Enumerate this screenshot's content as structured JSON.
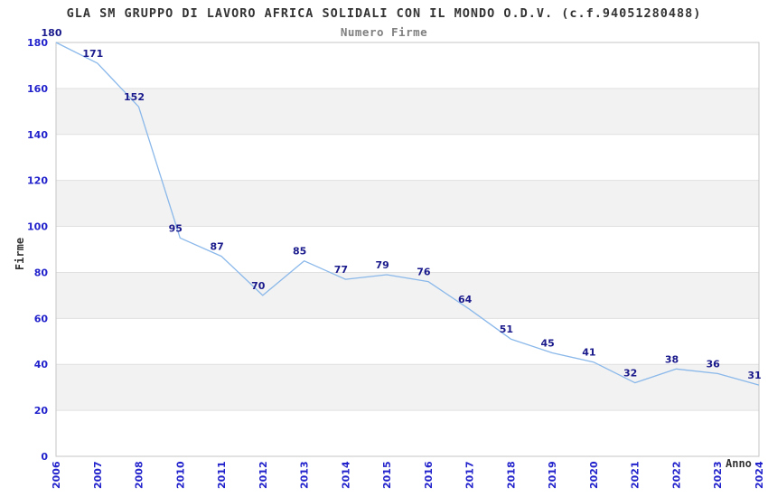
{
  "page": {
    "background": "#ffffff"
  },
  "chart_data": {
    "type": "line",
    "title": "GLA SM GRUPPO DI LAVORO AFRICA SOLIDALI CON IL MONDO O.D.V. (c.f.94051280488)",
    "subtitle": "Numero Firme",
    "xlabel": "Anno",
    "ylabel": "Firme",
    "categories": [
      "2006",
      "2007",
      "2008",
      "2010",
      "2011",
      "2012",
      "2013",
      "2014",
      "2015",
      "2016",
      "2017",
      "2018",
      "2019",
      "2020",
      "2021",
      "2022",
      "2023",
      "2024"
    ],
    "values": [
      180,
      171,
      152,
      95,
      87,
      70,
      85,
      77,
      79,
      76,
      64,
      51,
      45,
      41,
      32,
      38,
      36,
      31
    ],
    "ylim": [
      0,
      180
    ],
    "yticks": [
      0,
      20,
      40,
      60,
      80,
      100,
      120,
      140,
      160,
      180
    ],
    "grid": "horizontal-alternating-bands",
    "legend": "none",
    "data_labels_visible": true,
    "colors": {
      "line": "#8ab8ea",
      "data_label": "#1a1a8c",
      "tick_label": "#2222cc",
      "band_fill": "#f2f2f2",
      "grid_line": "#e0e0e0",
      "frame": "#c6c6c6",
      "title": "#333333",
      "subtitle": "#808080",
      "axis_title": "#333333"
    }
  }
}
